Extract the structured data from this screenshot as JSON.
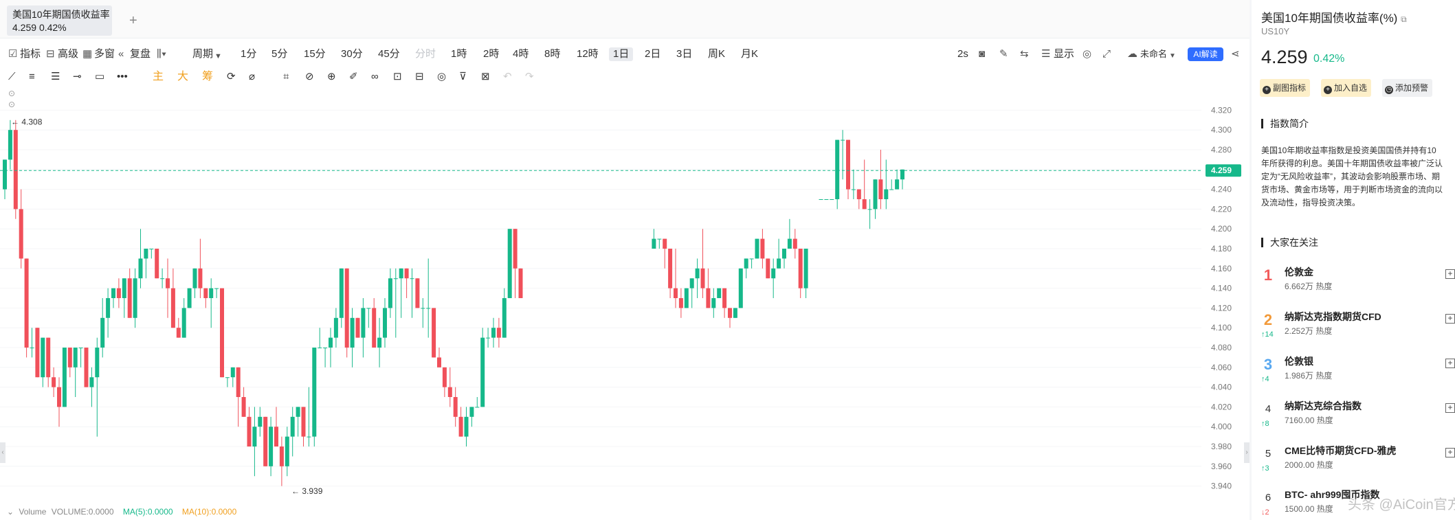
{
  "tab": {
    "title": "美国10年期国债收益率",
    "price": "4.259",
    "change": "0.42%",
    "add_label": "+"
  },
  "toolbar": {
    "indicator_label": "指标",
    "advanced_label": "高级",
    "multi_window_label": "多窗",
    "replay_label": "复盘",
    "period_label": "周期",
    "intervals": [
      "1分",
      "5分",
      "15分",
      "30分",
      "45分",
      "分时",
      "1時",
      "2時",
      "4時",
      "8時",
      "12時",
      "1日",
      "2日",
      "3日",
      "周K",
      "月K"
    ],
    "selected_interval": "1日",
    "refresh_label": "2s",
    "display_label": "显示",
    "unnamed_label": "未命名",
    "ai_label": "AI解读"
  },
  "draw_toolbar": {
    "main_label": "主",
    "big_label": "大",
    "chips_label": "筹"
  },
  "chart_data": {
    "type": "candlestick",
    "title": "",
    "y_ticks": [
      "4.320",
      "4.300",
      "4.280",
      "4.260",
      "4.240",
      "4.220",
      "4.200",
      "4.180",
      "4.160",
      "4.140",
      "4.120",
      "4.100",
      "4.080",
      "4.060",
      "4.040",
      "4.020",
      "4.000",
      "3.980",
      "3.960",
      "3.940"
    ],
    "ylim": [
      3.93,
      4.33
    ],
    "current_price": "4.259",
    "high_label": "4.308",
    "low_label": "3.939",
    "up_color": "#16b88a",
    "down_color": "#f0505a",
    "candles": [
      [
        4.24,
        4.27,
        4.23,
        4.27
      ],
      [
        4.27,
        4.31,
        4.26,
        4.3
      ],
      [
        4.3,
        4.31,
        4.21,
        4.22
      ],
      [
        4.22,
        4.24,
        4.16,
        4.17
      ],
      [
        4.17,
        4.17,
        4.07,
        4.08
      ],
      [
        4.08,
        4.1,
        4.07,
        4.08
      ],
      [
        4.1,
        4.1,
        4.05,
        4.05
      ],
      [
        4.05,
        4.09,
        4.04,
        4.09
      ],
      [
        4.09,
        4.09,
        4.04,
        4.05
      ],
      [
        4.05,
        4.06,
        4.03,
        4.04
      ],
      [
        4.04,
        4.05,
        4.0,
        4.02
      ],
      [
        4.02,
        4.08,
        4.02,
        4.08
      ],
      [
        4.08,
        4.08,
        4.05,
        4.06
      ],
      [
        4.06,
        4.08,
        4.03,
        4.08
      ],
      [
        4.08,
        4.08,
        4.06,
        4.08
      ],
      [
        4.08,
        4.08,
        4.04,
        4.04
      ],
      [
        4.04,
        4.06,
        4.02,
        4.05
      ],
      [
        4.05,
        4.09,
        3.99,
        4.08
      ],
      [
        4.08,
        4.13,
        4.07,
        4.11
      ],
      [
        4.11,
        4.14,
        4.09,
        4.13
      ],
      [
        4.13,
        4.14,
        4.12,
        4.14
      ],
      [
        4.14,
        4.15,
        4.12,
        4.13
      ],
      [
        4.13,
        4.15,
        4.11,
        4.15
      ],
      [
        4.15,
        4.16,
        4.11,
        4.11
      ],
      [
        4.11,
        4.16,
        4.1,
        4.15
      ],
      [
        4.15,
        4.2,
        4.14,
        4.17
      ],
      [
        4.17,
        4.18,
        4.15,
        4.18
      ],
      [
        4.18,
        4.18,
        4.17,
        4.18
      ],
      [
        4.18,
        4.18,
        4.15,
        4.15
      ],
      [
        4.15,
        4.16,
        4.14,
        4.15
      ],
      [
        4.15,
        4.17,
        4.11,
        4.14
      ],
      [
        4.14,
        4.16,
        4.1,
        4.1
      ],
      [
        4.1,
        4.11,
        4.09,
        4.09
      ],
      [
        4.09,
        4.13,
        4.09,
        4.12
      ],
      [
        4.12,
        4.14,
        4.12,
        4.14
      ],
      [
        4.14,
        4.16,
        4.13,
        4.16
      ],
      [
        4.16,
        4.19,
        4.13,
        4.14
      ],
      [
        4.14,
        4.14,
        4.12,
        4.13
      ],
      [
        4.13,
        4.15,
        4.1,
        4.14
      ],
      [
        4.14,
        4.14,
        4.13,
        4.14
      ],
      [
        4.14,
        4.14,
        4.05,
        4.05
      ],
      [
        4.05,
        4.05,
        4.04,
        4.05
      ],
      [
        4.05,
        4.06,
        4.04,
        4.06
      ],
      [
        4.06,
        4.06,
        4.0,
        4.03
      ],
      [
        4.03,
        4.04,
        4.01,
        4.01
      ],
      [
        4.01,
        4.02,
        3.98,
        3.98
      ],
      [
        3.98,
        4.02,
        3.95,
        4.0
      ],
      [
        4.0,
        4.02,
        3.99,
        4.01
      ],
      [
        4.01,
        4.01,
        3.96,
        3.96
      ],
      [
        3.96,
        4.01,
        3.95,
        4.0
      ],
      [
        4.0,
        4.02,
        3.98,
        3.98
      ],
      [
        3.98,
        3.99,
        3.94,
        3.96
      ],
      [
        3.96,
        4.0,
        3.95,
        3.99
      ],
      [
        3.99,
        4.02,
        3.97,
        4.01
      ],
      [
        4.01,
        4.02,
        3.99,
        4.02
      ],
      [
        4.02,
        4.02,
        3.98,
        3.99
      ],
      [
        3.99,
        4.04,
        3.98,
        3.99
      ],
      [
        3.99,
        4.08,
        3.98,
        4.08
      ],
      [
        4.08,
        4.1,
        4.08,
        4.08
      ],
      [
        4.08,
        4.08,
        4.06,
        4.08
      ],
      [
        4.08,
        4.1,
        4.06,
        4.09
      ],
      [
        4.09,
        4.12,
        4.08,
        4.11
      ],
      [
        4.11,
        4.16,
        4.1,
        4.16
      ],
      [
        4.16,
        4.16,
        4.07,
        4.08
      ],
      [
        4.08,
        4.12,
        4.06,
        4.11
      ],
      [
        4.11,
        4.11,
        4.09,
        4.09
      ],
      [
        4.09,
        4.13,
        4.07,
        4.12
      ],
      [
        4.12,
        4.12,
        4.1,
        4.12
      ],
      [
        4.12,
        4.13,
        4.08,
        4.08
      ],
      [
        4.08,
        4.11,
        4.06,
        4.09
      ],
      [
        4.09,
        4.13,
        4.08,
        4.12
      ],
      [
        4.12,
        4.16,
        4.11,
        4.15
      ],
      [
        4.15,
        4.16,
        4.09,
        4.15
      ],
      [
        4.15,
        4.16,
        4.11,
        4.16
      ],
      [
        4.16,
        4.16,
        4.13,
        4.15
      ],
      [
        4.15,
        4.16,
        4.11,
        4.15
      ],
      [
        4.15,
        4.15,
        4.12,
        4.12
      ],
      [
        4.12,
        4.13,
        4.1,
        4.12
      ],
      [
        4.12,
        4.17,
        4.09,
        4.12
      ],
      [
        4.12,
        4.12,
        4.07,
        4.07
      ],
      [
        4.07,
        4.08,
        4.06,
        4.06
      ],
      [
        4.06,
        4.06,
        4.03,
        4.04
      ],
      [
        4.04,
        4.06,
        4.02,
        4.03
      ],
      [
        4.03,
        4.04,
        4.0,
        4.01
      ],
      [
        4.01,
        4.02,
        3.99,
        3.99
      ],
      [
        3.99,
        4.02,
        3.98,
        4.01
      ],
      [
        4.01,
        4.02,
        4.0,
        4.02
      ],
      [
        4.02,
        4.03,
        4.02,
        4.02
      ],
      [
        4.02,
        4.1,
        4.02,
        4.09
      ],
      [
        4.09,
        4.1,
        4.08,
        4.09
      ],
      [
        4.09,
        4.11,
        4.08,
        4.1
      ],
      [
        4.1,
        4.11,
        4.08,
        4.09
      ],
      [
        4.09,
        4.14,
        4.09,
        4.13
      ],
      [
        4.13,
        4.2,
        4.13,
        4.2
      ],
      [
        4.2,
        4.2,
        4.13,
        4.16
      ],
      [
        4.16,
        4.16,
        4.13,
        4.13
      ]
    ],
    "candles2": [
      [
        4.18,
        4.2,
        4.18,
        4.19
      ],
      [
        4.19,
        4.19,
        4.18,
        4.19
      ],
      [
        4.19,
        4.19,
        4.16,
        4.18
      ],
      [
        4.18,
        4.18,
        4.13,
        4.14
      ],
      [
        4.14,
        4.18,
        4.12,
        4.13
      ],
      [
        4.13,
        4.14,
        4.11,
        4.12
      ],
      [
        4.12,
        4.14,
        4.12,
        4.14
      ],
      [
        4.14,
        4.15,
        4.12,
        4.15
      ],
      [
        4.15,
        4.17,
        4.13,
        4.16
      ],
      [
        4.16,
        4.2,
        4.13,
        4.14
      ],
      [
        4.14,
        4.16,
        4.12,
        4.12
      ],
      [
        4.12,
        4.14,
        4.11,
        4.13
      ],
      [
        4.13,
        4.14,
        4.13,
        4.14
      ],
      [
        4.14,
        4.14,
        4.11,
        4.12
      ],
      [
        4.12,
        4.12,
        4.1,
        4.11
      ],
      [
        4.11,
        4.12,
        4.11,
        4.12
      ],
      [
        4.12,
        4.16,
        4.12,
        4.16
      ],
      [
        4.16,
        4.17,
        4.15,
        4.17
      ],
      [
        4.17,
        4.17,
        4.16,
        4.17
      ],
      [
        4.17,
        4.19,
        4.17,
        4.19
      ],
      [
        4.19,
        4.2,
        4.16,
        4.17
      ],
      [
        4.17,
        4.17,
        4.15,
        4.15
      ],
      [
        4.15,
        4.17,
        4.13,
        4.16
      ],
      [
        4.16,
        4.19,
        4.16,
        4.17
      ],
      [
        4.17,
        4.18,
        4.16,
        4.18
      ],
      [
        4.18,
        4.21,
        4.18,
        4.19
      ],
      [
        4.19,
        4.2,
        4.17,
        4.18
      ],
      [
        4.18,
        4.18,
        4.13,
        4.14
      ],
      [
        4.14,
        4.18,
        4.13,
        4.18
      ]
    ],
    "candles3": [
      [
        4.23,
        4.23,
        4.23,
        4.23
      ],
      [
        4.23,
        4.23,
        4.23,
        4.23
      ],
      [
        4.23,
        4.23,
        4.23,
        4.23
      ],
      [
        4.23,
        4.29,
        4.22,
        4.29
      ],
      [
        4.29,
        4.3,
        4.25,
        4.29
      ],
      [
        4.29,
        4.29,
        4.23,
        4.24
      ],
      [
        4.24,
        4.26,
        4.23,
        4.24
      ],
      [
        4.24,
        4.24,
        4.22,
        4.23
      ],
      [
        4.23,
        4.27,
        4.22,
        4.22
      ],
      [
        4.22,
        4.23,
        4.2,
        4.22
      ],
      [
        4.22,
        4.25,
        4.21,
        4.25
      ],
      [
        4.25,
        4.28,
        4.22,
        4.23
      ],
      [
        4.23,
        4.27,
        4.22,
        4.24
      ],
      [
        4.24,
        4.25,
        4.24,
        4.24
      ],
      [
        4.24,
        4.26,
        4.24,
        4.25
      ],
      [
        4.25,
        4.26,
        4.24,
        4.26
      ]
    ]
  },
  "volume": {
    "label": "Volume",
    "volume_text": "VOLUME:0.0000",
    "ma5_text": "MA(5):0.0000",
    "ma10_text": "MA(10):0.0000"
  },
  "sidebar": {
    "title": "美国10年期国债收益率(%)",
    "code": "US10Y",
    "price": "4.259",
    "change": "0.42%",
    "btn_subchart": "副图指标",
    "btn_watchlist": "加入自选",
    "btn_alert": "添加预警",
    "intro_heading": "指数简介",
    "intro_text": "美国10年期收益率指数是投资美国国债并持有10年所获得的利息。美国十年期国债收益率被广泛认定为“无风险收益率”，其波动会影响股票市场、期货市场、黄金市场等，用于判断市场资金的流向以及流动性，指导投资决策。",
    "watch_heading": "大家在关注",
    "items": [
      {
        "rank": "1",
        "chg": "",
        "name": "伦敦金",
        "heat": "6.662万 热度"
      },
      {
        "rank": "2",
        "chg": "↑14",
        "name": "纳斯达克指数期货CFD",
        "heat": "2.252万 热度"
      },
      {
        "rank": "3",
        "chg": "↑4",
        "name": "伦敦银",
        "heat": "1.986万 热度"
      },
      {
        "rank": "4",
        "chg": "↑8",
        "name": "纳斯达克综合指数",
        "heat": "7160.00 热度"
      },
      {
        "rank": "5",
        "chg": "↑3",
        "name": "CME比特币期货CFD-雅虎",
        "heat": "2000.00 热度"
      },
      {
        "rank": "6",
        "chg": "↓2",
        "name": "BTC- ahr999囤币指数",
        "heat": "1500.00 热度"
      }
    ],
    "watermark": "头条 @AiCoin官方"
  }
}
